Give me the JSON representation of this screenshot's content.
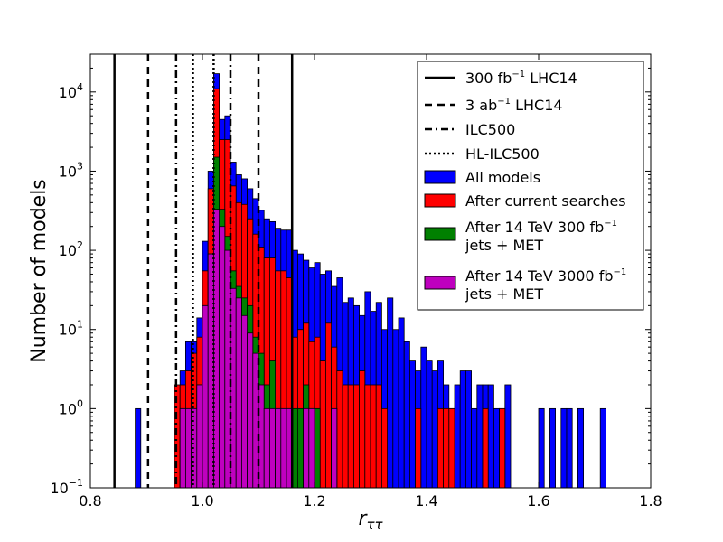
{
  "chart_data": {
    "type": "histogram",
    "title": "",
    "xlabel": "r_ττ",
    "xlabel_main": "r",
    "xlabel_sub": "ττ",
    "ylabel": "Number of models",
    "xlim": [
      0.8,
      1.8
    ],
    "ylim": [
      0.1,
      30000
    ],
    "yscale": "log",
    "grid": false,
    "legend_position": "top-right",
    "x_ticks": [
      0.8,
      1.0,
      1.2,
      1.4,
      1.6,
      1.8
    ],
    "x_tick_labels": [
      "0.8",
      "1.0",
      "1.2",
      "1.4",
      "1.6",
      "1.8"
    ],
    "y_ticks": [
      0.1,
      1,
      10,
      100,
      1000,
      10000
    ],
    "y_tick_labels": [
      {
        "base": "10",
        "exp": "−1"
      },
      {
        "base": "10",
        "exp": "0"
      },
      {
        "base": "10",
        "exp": "1"
      },
      {
        "base": "10",
        "exp": "2"
      },
      {
        "base": "10",
        "exp": "3"
      },
      {
        "base": "10",
        "exp": "4"
      }
    ],
    "bin_width": 0.01,
    "reference_lines": [
      {
        "name": "300 fb⁻¹ LHC14",
        "style": "solid",
        "x": [
          0.843,
          1.16
        ]
      },
      {
        "name": "3 ab⁻¹ LHC14",
        "style": "dashed",
        "x": [
          0.903,
          1.1
        ]
      },
      {
        "name": "ILC500",
        "style": "dashdot",
        "x": [
          0.953,
          1.05
        ]
      },
      {
        "name": "HL-ILC500",
        "style": "dotted",
        "x": [
          0.983,
          1.02
        ]
      }
    ],
    "series": [
      {
        "name": "All models",
        "color": "#0000ff",
        "bins": [
          [
            0.88,
            1
          ],
          [
            0.95,
            1
          ],
          [
            0.96,
            3
          ],
          [
            0.97,
            7
          ],
          [
            0.98,
            7
          ],
          [
            0.99,
            14
          ],
          [
            1.0,
            130
          ],
          [
            1.01,
            1000
          ],
          [
            1.02,
            17000
          ],
          [
            1.03,
            4500
          ],
          [
            1.04,
            5000
          ],
          [
            1.05,
            1300
          ],
          [
            1.06,
            900
          ],
          [
            1.07,
            800
          ],
          [
            1.08,
            600
          ],
          [
            1.09,
            450
          ],
          [
            1.1,
            320
          ],
          [
            1.11,
            250
          ],
          [
            1.12,
            230
          ],
          [
            1.13,
            190
          ],
          [
            1.14,
            180
          ],
          [
            1.15,
            180
          ],
          [
            1.16,
            100
          ],
          [
            1.17,
            90
          ],
          [
            1.18,
            75
          ],
          [
            1.19,
            60
          ],
          [
            1.2,
            70
          ],
          [
            1.21,
            50
          ],
          [
            1.22,
            55
          ],
          [
            1.23,
            35
          ],
          [
            1.24,
            45
          ],
          [
            1.25,
            22
          ],
          [
            1.26,
            25
          ],
          [
            1.27,
            20
          ],
          [
            1.28,
            15
          ],
          [
            1.29,
            30
          ],
          [
            1.3,
            17
          ],
          [
            1.31,
            22
          ],
          [
            1.32,
            10
          ],
          [
            1.33,
            25
          ],
          [
            1.34,
            10
          ],
          [
            1.35,
            14
          ],
          [
            1.36,
            7
          ],
          [
            1.37,
            4
          ],
          [
            1.38,
            3
          ],
          [
            1.39,
            6
          ],
          [
            1.4,
            4
          ],
          [
            1.41,
            3
          ],
          [
            1.42,
            4
          ],
          [
            1.43,
            2
          ],
          [
            1.44,
            1
          ],
          [
            1.45,
            2
          ],
          [
            1.46,
            3
          ],
          [
            1.47,
            3
          ],
          [
            1.48,
            1
          ],
          [
            1.49,
            2
          ],
          [
            1.5,
            2
          ],
          [
            1.51,
            2
          ],
          [
            1.52,
            1
          ],
          [
            1.53,
            1
          ],
          [
            1.54,
            2
          ],
          [
            1.6,
            1
          ],
          [
            1.62,
            1
          ],
          [
            1.64,
            1
          ],
          [
            1.65,
            1
          ],
          [
            1.67,
            1
          ],
          [
            1.71,
            1
          ]
        ]
      },
      {
        "name": "After current searches",
        "color": "#ff0000",
        "bins": [
          [
            0.95,
            2
          ],
          [
            0.96,
            2
          ],
          [
            0.97,
            3
          ],
          [
            0.98,
            5
          ],
          [
            0.99,
            8
          ],
          [
            1.0,
            55
          ],
          [
            1.01,
            600
          ],
          [
            1.02,
            11000
          ],
          [
            1.03,
            2500
          ],
          [
            1.04,
            2500
          ],
          [
            1.05,
            650
          ],
          [
            1.06,
            400
          ],
          [
            1.07,
            380
          ],
          [
            1.08,
            250
          ],
          [
            1.09,
            160
          ],
          [
            1.1,
            110
          ],
          [
            1.11,
            80
          ],
          [
            1.12,
            80
          ],
          [
            1.13,
            55
          ],
          [
            1.14,
            55
          ],
          [
            1.15,
            45
          ],
          [
            1.16,
            8
          ],
          [
            1.17,
            10
          ],
          [
            1.18,
            12
          ],
          [
            1.19,
            7
          ],
          [
            1.2,
            8
          ],
          [
            1.21,
            4
          ],
          [
            1.22,
            12
          ],
          [
            1.23,
            6
          ],
          [
            1.24,
            3
          ],
          [
            1.25,
            2
          ],
          [
            1.26,
            2
          ],
          [
            1.27,
            2
          ],
          [
            1.28,
            3
          ],
          [
            1.29,
            2
          ],
          [
            1.3,
            2
          ],
          [
            1.31,
            2
          ],
          [
            1.32,
            1
          ],
          [
            1.38,
            1
          ],
          [
            1.42,
            1
          ],
          [
            1.43,
            1
          ],
          [
            1.44,
            1
          ],
          [
            1.5,
            1
          ],
          [
            1.53,
            1
          ]
        ]
      },
      {
        "name": "After 14 TeV 300 fb⁻¹ jets + MET",
        "color": "#008000",
        "bins": [
          [
            0.96,
            1
          ],
          [
            0.97,
            1
          ],
          [
            0.98,
            1
          ],
          [
            0.99,
            2
          ],
          [
            1.0,
            20
          ],
          [
            1.01,
            90
          ],
          [
            1.02,
            1500
          ],
          [
            1.03,
            330
          ],
          [
            1.04,
            150
          ],
          [
            1.05,
            55
          ],
          [
            1.06,
            35
          ],
          [
            1.07,
            25
          ],
          [
            1.08,
            20
          ],
          [
            1.09,
            8
          ],
          [
            1.1,
            5
          ],
          [
            1.11,
            2
          ],
          [
            1.12,
            4
          ],
          [
            1.13,
            1
          ],
          [
            1.14,
            1
          ],
          [
            1.15,
            1
          ],
          [
            1.16,
            1
          ],
          [
            1.17,
            1
          ],
          [
            1.18,
            2
          ],
          [
            1.19,
            1
          ],
          [
            1.2,
            1
          ],
          [
            1.23,
            1
          ]
        ]
      },
      {
        "name": "After 14 TeV 3000 fb⁻¹ jets + MET",
        "color": "#bf00bf",
        "bins": [
          [
            0.96,
            1
          ],
          [
            0.97,
            1
          ],
          [
            0.98,
            1
          ],
          [
            0.99,
            2
          ],
          [
            1.0,
            20
          ],
          [
            1.01,
            90
          ],
          [
            1.02,
            330
          ],
          [
            1.03,
            200
          ],
          [
            1.04,
            100
          ],
          [
            1.05,
            33
          ],
          [
            1.06,
            25
          ],
          [
            1.07,
            15
          ],
          [
            1.08,
            9
          ],
          [
            1.09,
            5
          ],
          [
            1.1,
            2
          ],
          [
            1.11,
            1
          ],
          [
            1.12,
            1
          ],
          [
            1.13,
            1
          ],
          [
            1.14,
            1
          ],
          [
            1.15,
            1
          ],
          [
            1.18,
            1
          ],
          [
            1.19,
            1
          ],
          [
            1.23,
            1
          ]
        ]
      }
    ],
    "legend": [
      {
        "kind": "line",
        "style": "solid",
        "main": "300 fb",
        "sup": "−1",
        "rest": " LHC14"
      },
      {
        "kind": "line",
        "style": "dashed",
        "main": "3 ab",
        "sup": "−1",
        "rest": " LHC14"
      },
      {
        "kind": "line",
        "style": "dashdot",
        "main": "ILC500",
        "sup": "",
        "rest": ""
      },
      {
        "kind": "line",
        "style": "dotted",
        "main": "HL-ILC500",
        "sup": "",
        "rest": ""
      },
      {
        "kind": "patch",
        "color": "#0000ff",
        "line1": "All models",
        "line2": ""
      },
      {
        "kind": "patch",
        "color": "#ff0000",
        "line1": "After current searches",
        "line2": ""
      },
      {
        "kind": "patch",
        "color": "#008000",
        "line1_main": "After 14 TeV 300 fb",
        "line1_sup": "−1",
        "line2": "jets + MET"
      },
      {
        "kind": "patch",
        "color": "#bf00bf",
        "line1_main": "After 14 TeV 3000 fb",
        "line1_sup": "−1",
        "line2": "jets + MET"
      }
    ]
  }
}
